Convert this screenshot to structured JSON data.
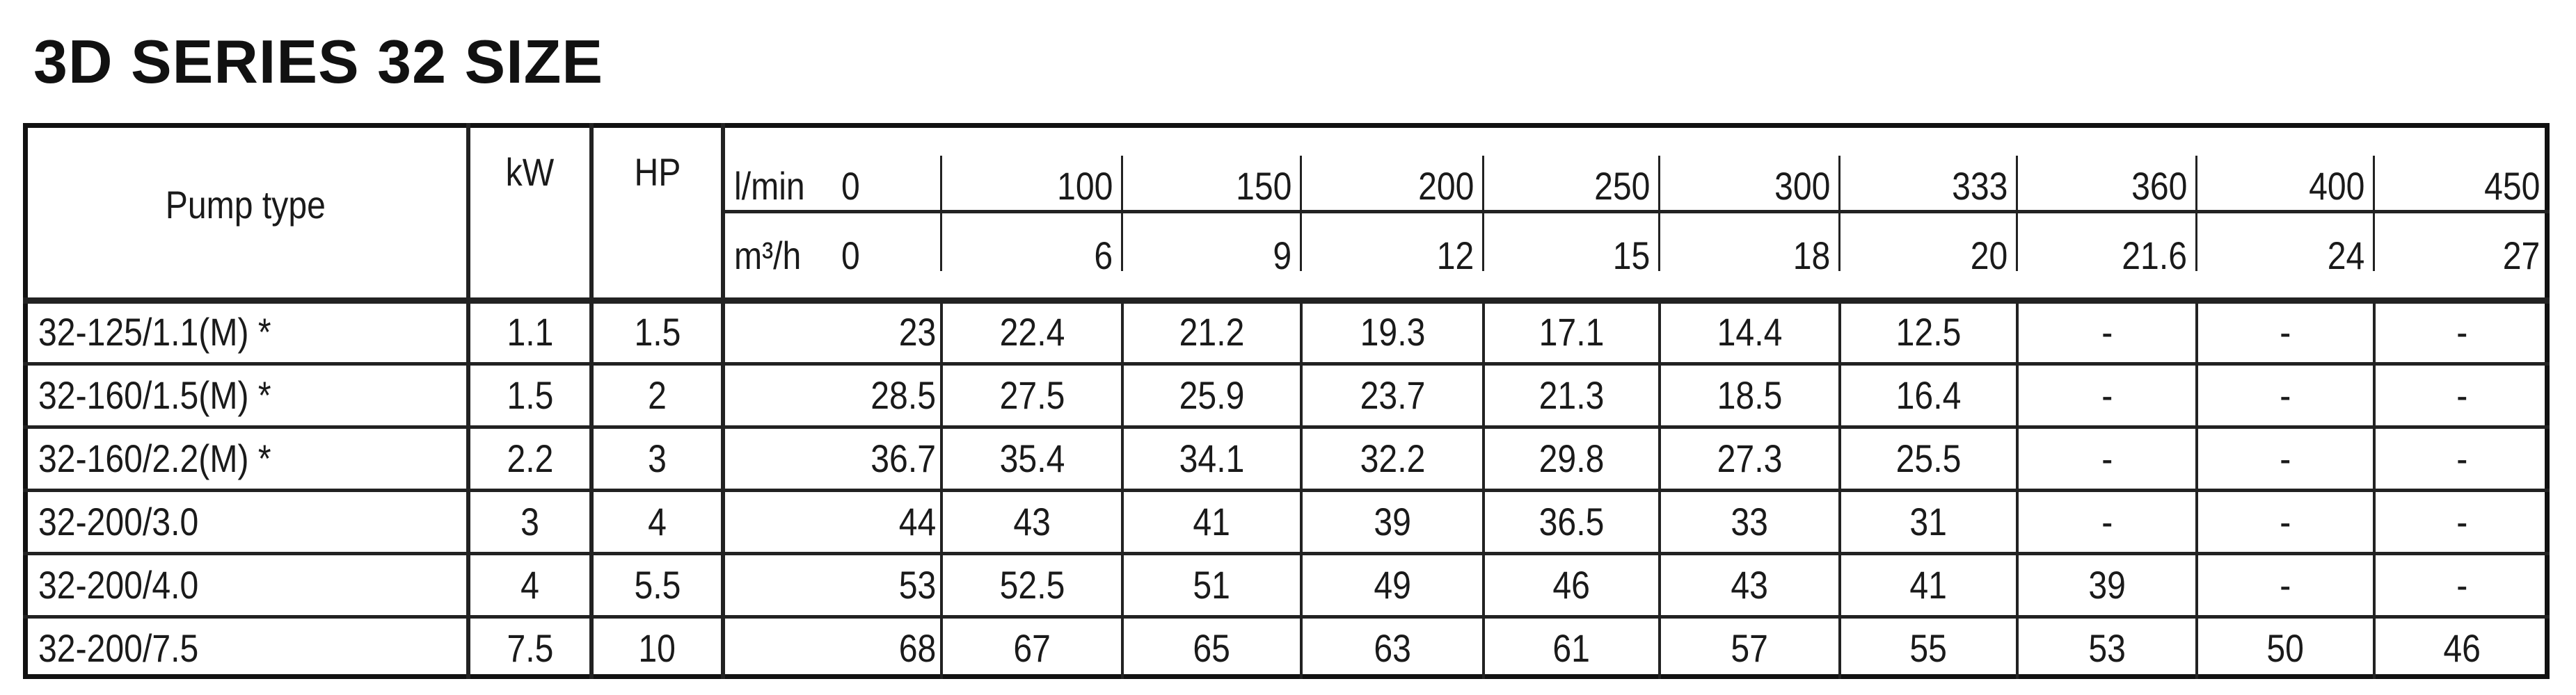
{
  "title": "3D SERIES 32 SIZE",
  "header": {
    "pump_type": "Pump type",
    "kw": "kW",
    "hp": "HP",
    "flow_lmin_label": "l/min",
    "flow_m3h_label": "m³/h",
    "flow_lmin": [
      "0",
      "100",
      "150",
      "200",
      "250",
      "300",
      "333",
      "360",
      "400",
      "450"
    ],
    "flow_m3h": [
      "0",
      "6",
      "9",
      "12",
      "15",
      "18",
      "20",
      "21.6",
      "24",
      "27"
    ]
  },
  "rows": [
    {
      "pump_type": "32-125/1.1(M)  *",
      "kw": "1.1",
      "hp": "1.5",
      "heads": [
        "23",
        "22.4",
        "21.2",
        "19.3",
        "17.1",
        "14.4",
        "12.5",
        "-",
        "-",
        "-"
      ]
    },
    {
      "pump_type": "32-160/1.5(M)  *",
      "kw": "1.5",
      "hp": "2",
      "heads": [
        "28.5",
        "27.5",
        "25.9",
        "23.7",
        "21.3",
        "18.5",
        "16.4",
        "-",
        "-",
        "-"
      ]
    },
    {
      "pump_type": "32-160/2.2(M)  *",
      "kw": "2.2",
      "hp": "3",
      "heads": [
        "36.7",
        "35.4",
        "34.1",
        "32.2",
        "29.8",
        "27.3",
        "25.5",
        "-",
        "-",
        "-"
      ]
    },
    {
      "pump_type": "32-200/3.0",
      "kw": "3",
      "hp": "4",
      "heads": [
        "44",
        "43",
        "41",
        "39",
        "36.5",
        "33",
        "31",
        "-",
        "-",
        "-"
      ]
    },
    {
      "pump_type": "32-200/4.0",
      "kw": "4",
      "hp": "5.5",
      "heads": [
        "53",
        "52.5",
        "51",
        "49",
        "46",
        "43",
        "41",
        "39",
        "-",
        "-"
      ]
    },
    {
      "pump_type": "32-200/7.5",
      "kw": "7.5",
      "hp": "10",
      "heads": [
        "68",
        "67",
        "65",
        "63",
        "61",
        "57",
        "55",
        "53",
        "50",
        "46"
      ]
    }
  ]
}
